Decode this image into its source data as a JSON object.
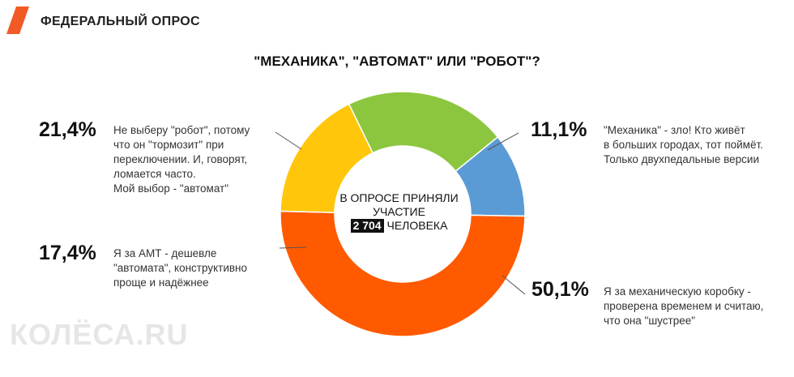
{
  "header": {
    "title": "ФЕДЕРАЛЬНЫЙ ОПРОС",
    "accent_color": "#f15a24"
  },
  "question": "\"МЕХАНИКА\", \"АВТОМАТ\" ИЛИ \"РОБОТ\"?",
  "center": {
    "line1": "В ОПРОСЕ ПРИНЯЛИ",
    "line2": "УЧАСТИЕ",
    "count": "2 704",
    "count_suffix": "ЧЕЛОВЕКА"
  },
  "watermark": "КОЛЁСА.RU",
  "answers": [
    {
      "pct_label": "11,1%",
      "lines": [
        "\"Механика\" - зло! Кто живёт",
        "в больших городах, тот поймёт.",
        "Только двухпедальные версии"
      ]
    },
    {
      "pct_label": "50,1%",
      "lines": [
        "Я за механическую коробку -",
        "проверена временем и считаю,",
        "что она \"шустрее\""
      ]
    },
    {
      "pct_label": "17,4%",
      "lines": [
        "Я за АМТ - дешевле",
        "\"автомата\", конструктивно",
        "проще и надёжнее"
      ]
    },
    {
      "pct_label": "21,4%",
      "lines": [
        "Не выберу \"робот\", потому",
        "что он \"тормозит\" при",
        "переключении. И, говорят,",
        "ломается часто.",
        "Мой выбор - \"автомат\""
      ]
    }
  ],
  "chart_data": {
    "type": "pie",
    "donut": true,
    "categories": [
      "\"Механика\" - зло! (11,1%)",
      "Механическая коробка (50,1%)",
      "АМТ (17,4%)",
      "\"Автомат\" (21,4%)"
    ],
    "values": [
      11.1,
      50.1,
      17.4,
      21.4
    ],
    "colors": [
      "#5b9bd5",
      "#ff5a00",
      "#ffc60b",
      "#8cc63f"
    ],
    "legend": "none"
  }
}
